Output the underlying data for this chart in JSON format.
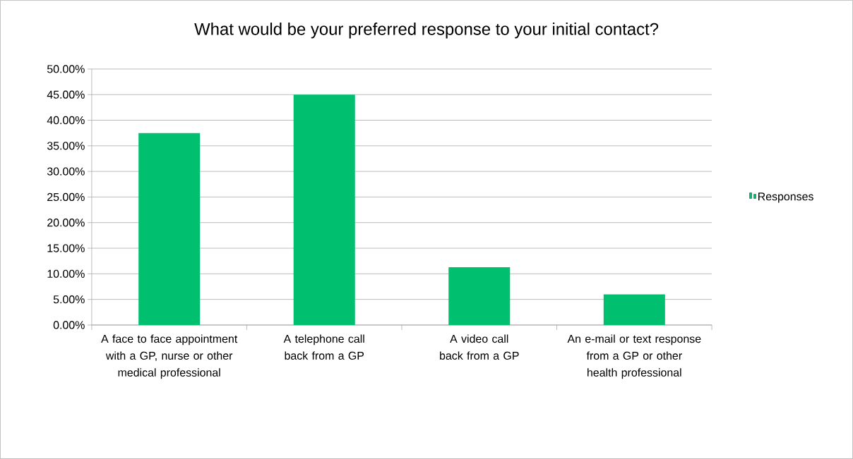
{
  "chart_data": {
    "type": "bar",
    "title": "What would be your preferred response to your initial contact?",
    "categories": [
      "A face to face appointment with a GP, nurse or other medical professional",
      "A telephone call back from a GP",
      "A video call back from a GP",
      "An e-mail or text response from a GP or other health professional"
    ],
    "series": [
      {
        "name": "Responses",
        "color": "#00bf6f",
        "values": [
          37.5,
          45.0,
          11.3,
          6.0
        ]
      }
    ],
    "ylim": [
      0,
      50
    ],
    "yticks": [
      {
        "value": 0,
        "label": "0.00%"
      },
      {
        "value": 5,
        "label": "5.00%"
      },
      {
        "value": 10,
        "label": "10.00%"
      },
      {
        "value": 15,
        "label": "15.00%"
      },
      {
        "value": 20,
        "label": "20.00%"
      },
      {
        "value": 25,
        "label": "25.00%"
      },
      {
        "value": 30,
        "label": "30.00%"
      },
      {
        "value": 35,
        "label": "35.00%"
      },
      {
        "value": 40,
        "label": "40.00%"
      },
      {
        "value": 45,
        "label": "45.00%"
      },
      {
        "value": 50,
        "label": "50.00%"
      }
    ],
    "grid": "y",
    "legend": "right"
  }
}
